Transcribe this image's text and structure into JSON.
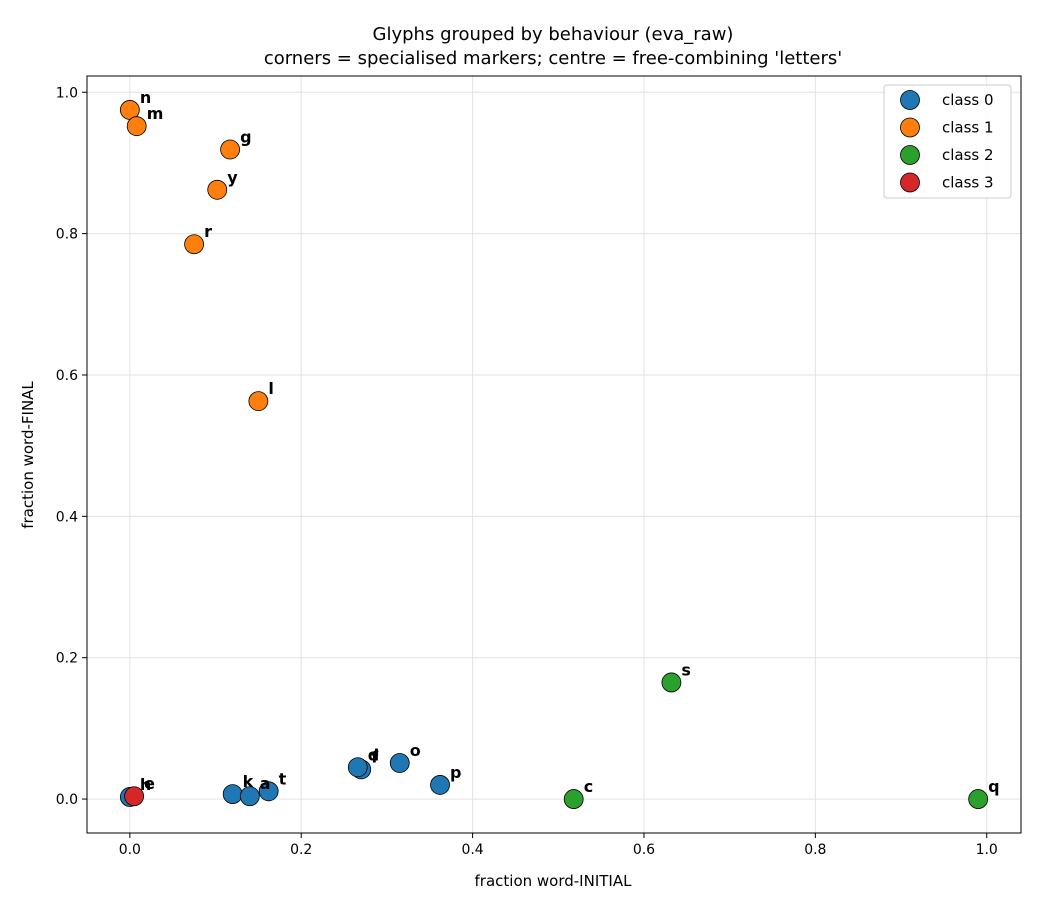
{
  "chart_data": {
    "type": "scatter",
    "title": "Glyphs grouped by behaviour (eva_raw)",
    "subtitle": "corners = specialised markers; centre = free-combining 'letters'",
    "xlabel": "fraction word-INITIAL",
    "ylabel": "fraction word-FINAL",
    "xlim": [
      -0.05,
      1.04
    ],
    "ylim": [
      -0.048,
      1.023
    ],
    "xticks": [
      "0.0",
      "0.2",
      "0.4",
      "0.6",
      "0.8",
      "1.0"
    ],
    "yticks": [
      "0.0",
      "0.2",
      "0.4",
      "0.6",
      "0.8",
      "1.0"
    ],
    "grid": true,
    "legend_position": "top-right",
    "series": [
      {
        "name": "class 0",
        "color": "#1f77b4",
        "points": [
          {
            "label": "h",
            "x": 0.0,
            "y": 0.003
          },
          {
            "label": "k",
            "x": 0.12,
            "y": 0.007
          },
          {
            "label": "a",
            "x": 0.14,
            "y": 0.004
          },
          {
            "label": "t",
            "x": 0.162,
            "y": 0.011
          },
          {
            "label": "f",
            "x": 0.27,
            "y": 0.042
          },
          {
            "label": "d",
            "x": 0.266,
            "y": 0.045
          },
          {
            "label": "o",
            "x": 0.315,
            "y": 0.051
          },
          {
            "label": "p",
            "x": 0.362,
            "y": 0.02
          }
        ]
      },
      {
        "name": "class 1",
        "color": "#ff7f0e",
        "points": [
          {
            "label": "n",
            "x": 0.0,
            "y": 0.975
          },
          {
            "label": "m",
            "x": 0.008,
            "y": 0.952
          },
          {
            "label": "g",
            "x": 0.117,
            "y": 0.919
          },
          {
            "label": "y",
            "x": 0.102,
            "y": 0.862
          },
          {
            "label": "r",
            "x": 0.075,
            "y": 0.785
          },
          {
            "label": "l",
            "x": 0.15,
            "y": 0.563
          }
        ]
      },
      {
        "name": "class 2",
        "color": "#2ca02c",
        "points": [
          {
            "label": "s",
            "x": 0.632,
            "y": 0.165
          },
          {
            "label": "c",
            "x": 0.518,
            "y": 0.0
          },
          {
            "label": "q",
            "x": 0.99,
            "y": 0.0
          }
        ]
      },
      {
        "name": "class 3",
        "color": "#d62728",
        "points": [
          {
            "label": "e",
            "x": 0.005,
            "y": 0.004
          }
        ]
      }
    ]
  }
}
